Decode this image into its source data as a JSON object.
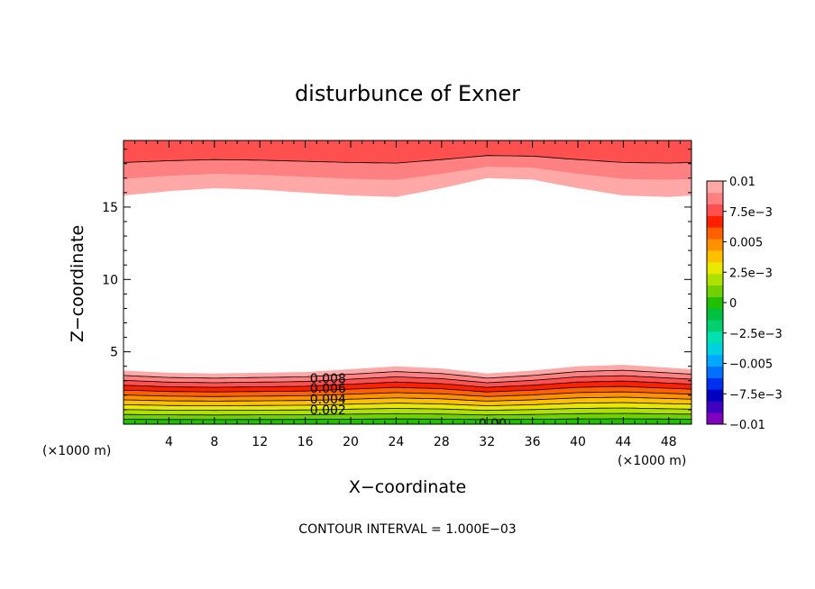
{
  "chart_data": {
    "type": "filled-contour",
    "title": "disturbunce of Exner",
    "xlabel": "X−coordinate",
    "ylabel": "Z−coordinate",
    "x_unit_left": "(×1000 m)",
    "x_unit_right": "(×1000 m)",
    "xlim": [
      0,
      50
    ],
    "ylim": [
      0,
      19.6
    ],
    "x_ticks": [
      "4",
      "8",
      "12",
      "16",
      "20",
      "24",
      "28",
      "32",
      "36",
      "40",
      "44",
      "48"
    ],
    "y_ticks": [
      "5",
      "10",
      "15"
    ],
    "contour_interval_text": "CONTOUR INTERVAL = 1.000E−03",
    "contour_labels": [
      "0.008",
      "0.006",
      "0.004",
      "0.002",
      "0.00"
    ],
    "colorbar": {
      "labels": [
        "0.01",
        "7.5e−3",
        "0.005",
        "2.5e−3",
        "0",
        "−2.5e−3",
        "−0.005",
        "−7.5e−3",
        "−0.01"
      ],
      "levels": [
        -0.01,
        -0.009,
        -0.008,
        -0.007,
        -0.006,
        -0.005,
        -0.004,
        -0.003,
        -0.002,
        -0.001,
        0,
        0.001,
        0.002,
        0.003,
        0.004,
        0.005,
        0.006,
        0.007,
        0.008,
        0.009,
        0.01
      ],
      "colors": [
        "#7f00bf",
        "#3f00bf",
        "#0000bf",
        "#0030ef",
        "#0070ff",
        "#00a8ff",
        "#00d0e0",
        "#00e0b0",
        "#00d070",
        "#00c040",
        "#20c000",
        "#70d000",
        "#b0e000",
        "#e8e800",
        "#ffc000",
        "#ff9000",
        "#ff6000",
        "#ff2000",
        "#ff5050",
        "#ff8080",
        "#ffa8a8"
      ]
    },
    "surface_bands_top_level_at_x": {
      "x": [
        0,
        4,
        8,
        12,
        16,
        20,
        24,
        28,
        32,
        36,
        40,
        44,
        48,
        50
      ],
      "z": [
        3.7,
        3.55,
        3.5,
        3.55,
        3.6,
        3.8,
        4.0,
        3.85,
        3.5,
        3.7,
        4.0,
        4.1,
        3.9,
        3.8
      ]
    },
    "upper_band_bottom_at_x": {
      "x": [
        0,
        4,
        8,
        12,
        16,
        20,
        24,
        28,
        32,
        36,
        40,
        44,
        48,
        50
      ],
      "z": [
        15.8,
        16.1,
        16.3,
        16.2,
        16.0,
        15.8,
        15.7,
        16.3,
        17.0,
        16.9,
        16.3,
        15.8,
        15.7,
        15.8
      ]
    }
  }
}
